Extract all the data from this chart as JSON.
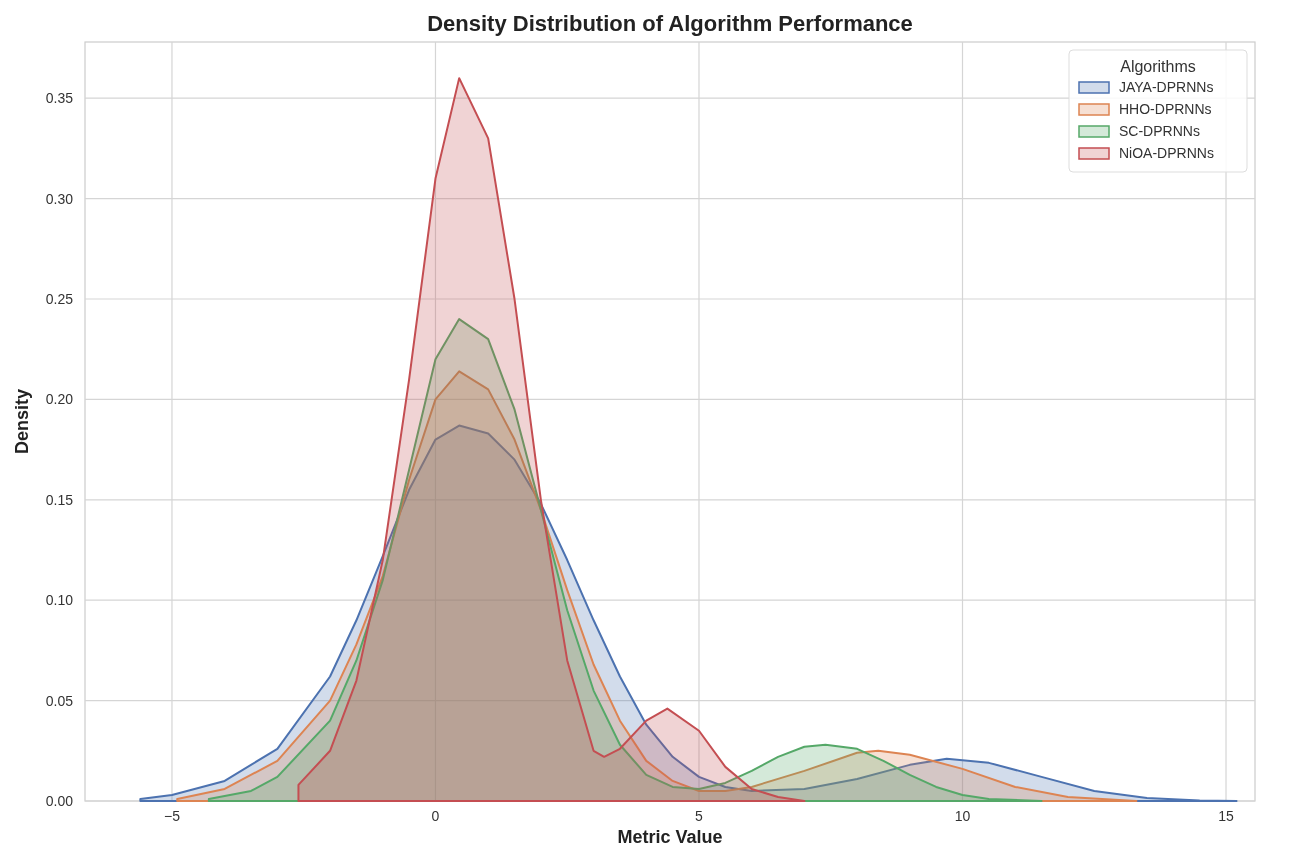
{
  "chart_data": {
    "type": "area",
    "title": "Density Distribution of Algorithm Performance",
    "xlabel": "Metric Value",
    "ylabel": "Density",
    "legend_title": "Algorithms",
    "legend": "top right",
    "grid": true,
    "xlim": [
      -6.65,
      15.55
    ],
    "xticks": [
      {
        "value": -5,
        "label": "−5"
      },
      0,
      5,
      10,
      15
    ],
    "ylim": [
      0,
      0.378
    ],
    "yticks": [
      {
        "value": 0,
        "label": "0.00"
      },
      {
        "value": 0.05,
        "label": "0.05"
      },
      {
        "value": 0.1,
        "label": "0.10"
      },
      {
        "value": 0.15,
        "label": "0.15"
      },
      {
        "value": 0.2,
        "label": "0.20"
      },
      {
        "value": 0.25,
        "label": "0.25"
      },
      {
        "value": 0.3,
        "label": "0.30"
      },
      {
        "value": 0.35,
        "label": "0.35"
      }
    ],
    "series": [
      {
        "name": "JAYA-DPRNNs",
        "color": "#4c72b0",
        "x": [
          -5.6,
          -5,
          -4,
          -3,
          -2,
          -1.5,
          -1,
          -0.5,
          0,
          0.45,
          1,
          1.5,
          2,
          2.5,
          3,
          3.5,
          4,
          4.5,
          5,
          5.5,
          6,
          7,
          8,
          9,
          9.7,
          10.5,
          11.5,
          12.5,
          13.5,
          14.5,
          15.2
        ],
        "values": [
          0.001,
          0.003,
          0.01,
          0.026,
          0.062,
          0.09,
          0.122,
          0.155,
          0.18,
          0.187,
          0.183,
          0.17,
          0.148,
          0.12,
          0.09,
          0.062,
          0.038,
          0.022,
          0.012,
          0.007,
          0.005,
          0.006,
          0.011,
          0.018,
          0.021,
          0.019,
          0.012,
          0.005,
          0.0015,
          0.0003,
          0
        ]
      },
      {
        "name": "HHO-DPRNNs",
        "color": "#dd8452",
        "x": [
          -4.9,
          -4,
          -3,
          -2,
          -1.5,
          -1,
          -0.5,
          0,
          0.45,
          1,
          1.5,
          2,
          2.5,
          3,
          3.5,
          4,
          4.5,
          5,
          5.5,
          6,
          7,
          8,
          8.4,
          9,
          10,
          11,
          12,
          13.3
        ],
        "values": [
          0.001,
          0.006,
          0.02,
          0.05,
          0.078,
          0.112,
          0.16,
          0.2,
          0.214,
          0.205,
          0.18,
          0.145,
          0.105,
          0.068,
          0.04,
          0.02,
          0.01,
          0.005,
          0.005,
          0.007,
          0.015,
          0.024,
          0.025,
          0.023,
          0.016,
          0.007,
          0.002,
          0
        ]
      },
      {
        "name": "SC-DPRNNs",
        "color": "#55a868",
        "x": [
          -4.3,
          -3.5,
          -3,
          -2,
          -1.5,
          -1,
          -0.5,
          0,
          0.45,
          1,
          1.5,
          2,
          2.5,
          3,
          3.5,
          4,
          4.5,
          5,
          5.5,
          6,
          6.5,
          7,
          7.4,
          8,
          8.5,
          9,
          9.5,
          10,
          10.5,
          11.5
        ],
        "values": [
          0.001,
          0.005,
          0.012,
          0.04,
          0.07,
          0.11,
          0.165,
          0.22,
          0.24,
          0.23,
          0.195,
          0.145,
          0.095,
          0.055,
          0.028,
          0.013,
          0.007,
          0.006,
          0.009,
          0.015,
          0.022,
          0.027,
          0.028,
          0.026,
          0.02,
          0.013,
          0.007,
          0.003,
          0.001,
          0
        ]
      },
      {
        "name": "NiOA-DPRNNs",
        "color": "#c44e52",
        "x": [
          -2.6,
          -2,
          -1.5,
          -1,
          -0.5,
          0,
          0.45,
          1,
          1.5,
          2,
          2.5,
          3,
          3.2,
          3.5,
          4,
          4.4,
          5,
          5.5,
          6,
          6.5,
          7
        ],
        "values": [
          0.008,
          0.025,
          0.06,
          0.12,
          0.21,
          0.31,
          0.36,
          0.33,
          0.25,
          0.15,
          0.07,
          0.025,
          0.022,
          0.026,
          0.04,
          0.046,
          0.035,
          0.017,
          0.006,
          0.002,
          0
        ]
      }
    ]
  }
}
